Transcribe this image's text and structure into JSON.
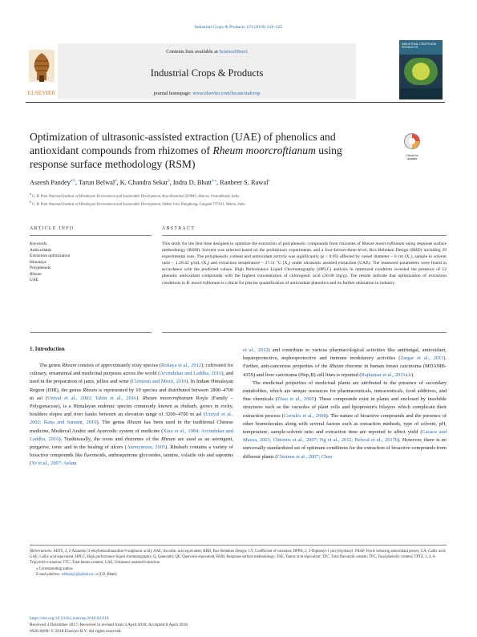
{
  "journal_ref": "Industrial Crops & Products 119 (2018) 218–225",
  "header": {
    "contents_prefix": "Contents lists available at ",
    "contents_link": "ScienceDirect",
    "journal_title": "Industrial Crops & Products",
    "homepage_prefix": "journal homepage: ",
    "homepage_url": "www.elsevier.com/locate/indcrop",
    "publisher": "ELSEVIER",
    "cover_text": "INDUSTRIAL CROPS AND PRODUCTS"
  },
  "check_badge": "Check for updates",
  "title_parts": {
    "line1": "Optimization of ultrasonic-assisted extraction (UAE) of phenolics and",
    "line2_a": "antioxidant compounds from rhizomes of ",
    "line2_italic": "Rheum moorcroftianum",
    "line2_b": " using",
    "line3": "response surface methodology (RSM)"
  },
  "authors": [
    {
      "name": "Aseesh Pandey",
      "sup": "a,b"
    },
    {
      "name": "Tarun Belwal",
      "sup": "a"
    },
    {
      "name": "K. Chandra Sekar",
      "sup": "a"
    },
    {
      "name": "Indra D. Bhatt",
      "sup": "a,⁎"
    },
    {
      "name": "Ranbeer S. Rawal",
      "sup": "a"
    }
  ],
  "affiliations": [
    {
      "sup": "a",
      "text": "G. B. Pant National Institute of Himalayan Environment and Sustainable Development, Kosi-Katarmal 263643, Almora, Uttarakhand, India"
    },
    {
      "sup": "b",
      "text": "G. B. Pant National Institute of Himalayan Environment and Sustainable Development, Sikkim Unit, Pangthang, Gangtok 737101, Sikkim, India"
    }
  ],
  "article_info_heading": "ARTICLE INFO",
  "abstract_heading": "ABSTRACT",
  "keywords_label": "Keywords:",
  "keywords": [
    "Antioxidants",
    "Extraction optimization",
    "Himalaya",
    "Polyphenols",
    "Rheum",
    "UAE"
  ],
  "abstract": {
    "p1": "This study for the first time designed to optimize the extraction of polyphenolic compounds from rhizomes of ",
    "i1": "Rheum moorcroftianum",
    "p2": " using response surface methodology (RSM). Solvent was selected based on the preliminary experiments, and a four-factors-three-level, Box-Behnken Design (BBD) including 29 experimental runs. The polyphenolic content and antioxidant activity was significantly (p < 0.05) affected by vessel diameter – 6 cm (X₁), sample to solvent ratio – 1:28.42 g/mL (X₂) and extraction temperature – 37.11 °C (X₄) under ultrasonic assisted extraction (UAE). The measured parameters were found in accordance with the predicted values. High Performance Liquid Chromatography (HPLC) analysis in optimized condition revealed the presence of 12 phenolic antioxidant compounds with the highest concentration of chlorogenic acid (26.68 mg/g). The results indicate that optimization of extraction conditions in ",
    "i2": "R. moorcroftianum",
    "p3": " is critical for precise quantification of antioxidant phenolics and its further utilization in industry."
  },
  "intro_heading": "1.  Introduction",
  "col_left": {
    "a": "The genus ",
    "ai": "Rheum",
    "b": " consists of approximately sixty species (",
    "bl": "Rokaya et al., 2012",
    "c": "); cultivated for culinary, ornamental and medicinal purposes across the world (",
    "cl": "Arvindekar and Laddha, 2016",
    "d": "), and used in the preparation of jams, jellies and wine (",
    "dl": "Clementi and Misiti, 2010",
    "e": "). In Indian Himalayan Region (IHR), the genus ",
    "ei": "Rheum",
    "f": " is represented by 10 species and distributed between 2800–4700 m asl (",
    "fl": "Uniyal et al., 2002; Tabin et al., 2016",
    "g": "). ",
    "gi": "Rheum moorcroftianum",
    "h": " Royle (Family – Polygonaceae), is a Himalayan endemic species commonly known as rhubarb, grows in rocky, boulders slopes and river banks between an elevation range of 3200–4700 m asl (",
    "hl": "Uniyal et al., 2002; Rana and Samant, 2010",
    "i": "). The genus ",
    "ii": "Rheum",
    "j": " has been used in the traditional Chinese medicine, Medieval Arabic and Ayurvedic system of medicine (",
    "jl": "Xiao et al., 1984; Arvindekar and Laddha, 2016",
    "k": "). Traditionally, the roots and rhizomes of the ",
    "ki": "Rheum",
    "l": " are used as an astringent, purgative, tonic and in the healing of ulcers (",
    "ll": "Anonymous, 2005",
    "m": "). Rhubarb contains a variety of bioactive compounds like flavonoids, anthraquinone glycosides, tannins, volatile oils and saponins (",
    "ml": "Ye et al., 2007; Aslam"
  },
  "col_right": {
    "p1a_l": "et al., 2012",
    "p1a": ") and contribute to various pharmacological activities like antifungal, antioxidant, hepatoprotective, nephroprotective and immune modulatory activities (",
    "p1b_l": "Zargar et al., 2011",
    "p1b": "). Further, anti-cancerous properties of the ",
    "p1b_i": "Rheum",
    "p1c": " rhizome in human breast carcinoma (MDAMB-435S) and liver carcinoma (Hep₃B) cell lines is reported (",
    "p1c_l": "Rajkumar et al., 2011a,b",
    "p1d": ").",
    "p2a": "The medicinal properties of medicinal plants are attributed to the presence of secondary metabolites, which are unique resources for pharmaceuticals, nutraceuticals, food additives, and fine chemicals (",
    "p2a_l": "Zhao et al., 2005",
    "p2b": "). These compounds exist in plants and enclosed by insoluble structures such as the vacuoles of plant cells and lipoprotein's bilayers which complicate their extraction process (",
    "p2b_l": "Corrales et al., 2008",
    "p2c": "). The nature of bioactive compounds and the presence of other biomolecules along with several factors such as extraction methods, type of solvent, pH, temperature, sample-solvent ratio and extraction time are reported to affect yield (",
    "p2c_l": "Cacace and Mazza, 2003; Chirinos et al., 2007; Ng et al., 2012; Belwal et al., 2017b",
    "p2d": "). However, there is no universally standardized set of optimum conditions for the extraction of bioactive compounds from different plants (",
    "p2d_l": "Chirinos et al., 2007; Chen"
  },
  "footnotes": {
    "abbrev_label": "Abbreviations:",
    "abbrev": " ABTS, 2, 2-Azinobis (3-ethylbenzothiazoline-6-sulphonic acid); AAE, Ascorbic acid equivalent; BBD, Box-Behnken Design; CV, Coefficient of variation; DPPH, 2, 2-Diphenyl-1-picrylhydrazyl; FRAP, Ferric reducing antioxidant power; GA, Gallic acid; GAE, Gallic acid equivalent; HPLC, High performance liquid chromatography; Q, Quercetin; QE, Quercetin equivalent; RSM, Response surface methodology; TAE, Tannic acid equivalent; TFC, Total flavonoid content; TPC, Total phenolic content; TPTZ, 2, 4, 6-Tripyridyl-s-triazine; TTC, Total tannin content; UAE, Ultrasonic assisted extraction",
    "corresponding": "⁎ Corresponding author.",
    "email_label": "E-mail address:",
    "email": "idbhatt@gbpihed.nic.in",
    "email_suffix": " (I.D. Bhatt)."
  },
  "bottom": {
    "doi": "https://doi.org/10.1016/j.indcrop.2018.04.019",
    "received": "Received 4 December 2017; Received in revised form 3 April 2018; Accepted 8 April 2018",
    "copyright": "0926-6690/ © 2018 Elsevier B.V. All rights reserved."
  }
}
